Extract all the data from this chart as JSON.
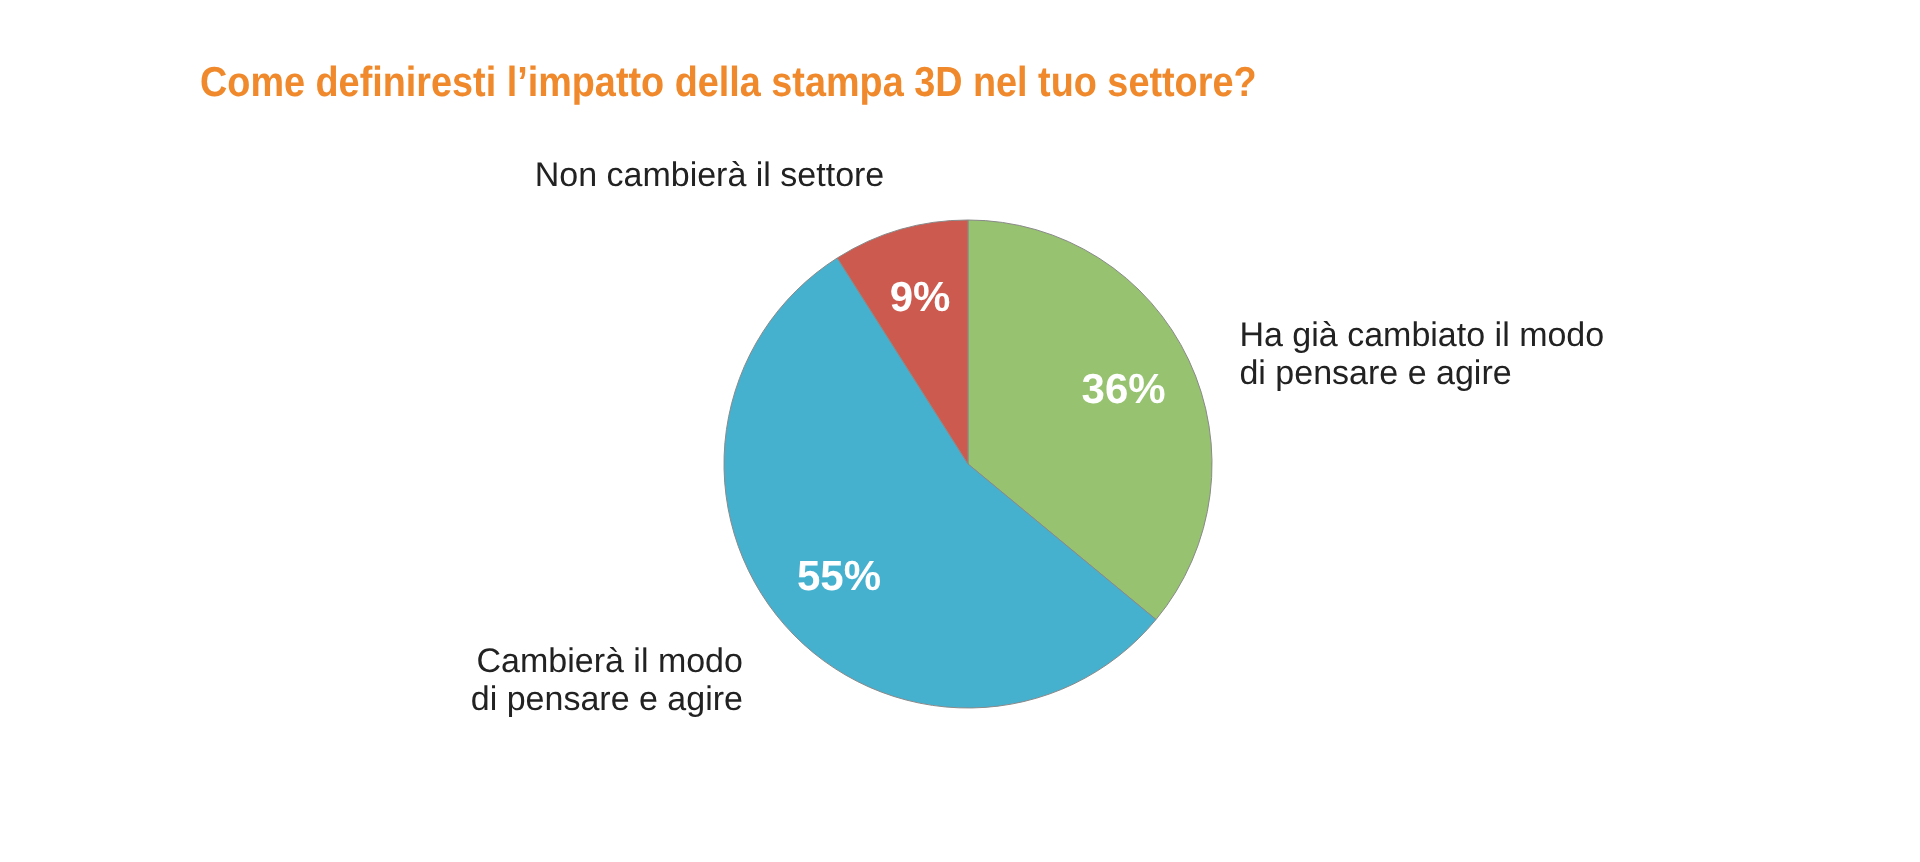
{
  "chart_data": {
    "type": "pie",
    "title": "Come definiresti l’impatto della stampa 3D nel tuo settore?",
    "categories": [
      "Ha già cambiato il modo\ndi pensare e agire",
      "Cambierà il modo\ndi pensare e agire",
      "Non cambierà il settore"
    ],
    "values": [
      36,
      55,
      9
    ],
    "colors": [
      "#97c26f",
      "#45b1cf",
      "#cd5a4f"
    ],
    "value_labels": [
      "36%",
      "55%",
      "9%"
    ]
  }
}
